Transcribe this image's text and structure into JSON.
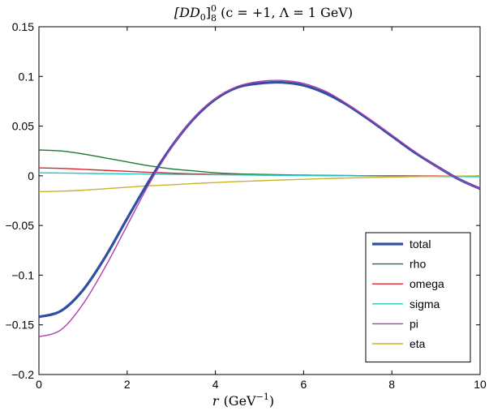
{
  "chart_data": {
    "type": "line",
    "title": "[DD₀]₈⁰ (c = +1, Λ = 1 GeV)",
    "title_parts": {
      "base": "[DD",
      "base_sub": "0",
      "close": "]",
      "sub": "8",
      "sup": "0",
      "rest": " (c = +1, Λ = 1 GeV)"
    },
    "xlabel": "r (GeV⁻¹)",
    "xlabel_parts": {
      "var": "r",
      "unit": "(GeV",
      "exp": "−1",
      "close": ")"
    },
    "ylabel": "",
    "xlim": [
      0,
      10
    ],
    "ylim": [
      -0.2,
      0.15
    ],
    "xticks": [
      0,
      2,
      4,
      6,
      8,
      10
    ],
    "xtick_labels": [
      "0",
      "2",
      "4",
      "6",
      "8",
      "10"
    ],
    "yticks": [
      -0.2,
      -0.15,
      -0.1,
      -0.05,
      0,
      0.05,
      0.1,
      0.15
    ],
    "ytick_labels": [
      "−0.2",
      "−0.15",
      "−0.1",
      "−0.05",
      "0",
      "0.05",
      "0.1",
      "0.15"
    ],
    "grid": false,
    "legend_position": "bottom-right",
    "x": [
      0,
      0.5,
      1,
      1.5,
      2,
      2.5,
      3,
      3.5,
      4,
      4.5,
      5,
      5.5,
      6,
      6.5,
      7,
      7.5,
      8,
      8.5,
      9,
      9.5,
      10
    ],
    "series": [
      {
        "name": "total",
        "color": "#2f4fa0",
        "width": 3.2,
        "values": [
          -0.142,
          -0.136,
          -0.115,
          -0.082,
          -0.043,
          -0.005,
          0.029,
          0.057,
          0.077,
          0.089,
          0.093,
          0.094,
          0.091,
          0.083,
          0.071,
          0.056,
          0.04,
          0.024,
          0.01,
          -0.003,
          -0.013
        ]
      },
      {
        "name": "rho",
        "color": "#1a7a33",
        "width": 1.4,
        "values": [
          0.026,
          0.025,
          0.022,
          0.018,
          0.014,
          0.01,
          0.007,
          0.005,
          0.003,
          0.002,
          0.0015,
          0.001,
          0.0007,
          0.0004,
          0.0002,
          0.0001,
          0.0,
          -0.0002,
          -0.0004,
          -0.0006,
          -0.0008
        ]
      },
      {
        "name": "omega",
        "color": "#e0232a",
        "width": 1.4,
        "values": [
          0.008,
          0.0075,
          0.0065,
          0.0055,
          0.0045,
          0.0035,
          0.0027,
          0.002,
          0.0015,
          0.0011,
          0.0008,
          0.0006,
          0.0004,
          0.0003,
          0.0002,
          0.0001,
          0.0,
          -0.0001,
          -0.0002,
          -0.0003,
          -0.0004
        ]
      },
      {
        "name": "sigma",
        "color": "#1ec8c8",
        "width": 1.4,
        "values": [
          0.003,
          0.0028,
          0.0025,
          0.0022,
          0.002,
          0.0017,
          0.0015,
          0.0013,
          0.0011,
          0.0009,
          0.0007,
          0.0005,
          0.0003,
          0.0001,
          0.0,
          -0.0002,
          -0.0004,
          -0.0005,
          -0.0007,
          -0.0008,
          -0.001
        ]
      },
      {
        "name": "pi",
        "color": "#b03db0",
        "width": 1.4,
        "values": [
          -0.162,
          -0.155,
          -0.129,
          -0.092,
          -0.05,
          -0.008,
          0.028,
          0.058,
          0.078,
          0.09,
          0.095,
          0.096,
          0.093,
          0.085,
          0.072,
          0.057,
          0.041,
          0.025,
          0.01,
          -0.003,
          -0.013
        ]
      },
      {
        "name": "eta",
        "color": "#c8b428",
        "width": 1.4,
        "values": [
          -0.016,
          -0.0155,
          -0.0145,
          -0.013,
          -0.0115,
          -0.01,
          -0.009,
          -0.0078,
          -0.0068,
          -0.0058,
          -0.005,
          -0.0042,
          -0.0035,
          -0.0028,
          -0.0022,
          -0.0017,
          -0.0013,
          -0.0009,
          -0.0006,
          -0.0003,
          -0.0001
        ]
      }
    ]
  }
}
